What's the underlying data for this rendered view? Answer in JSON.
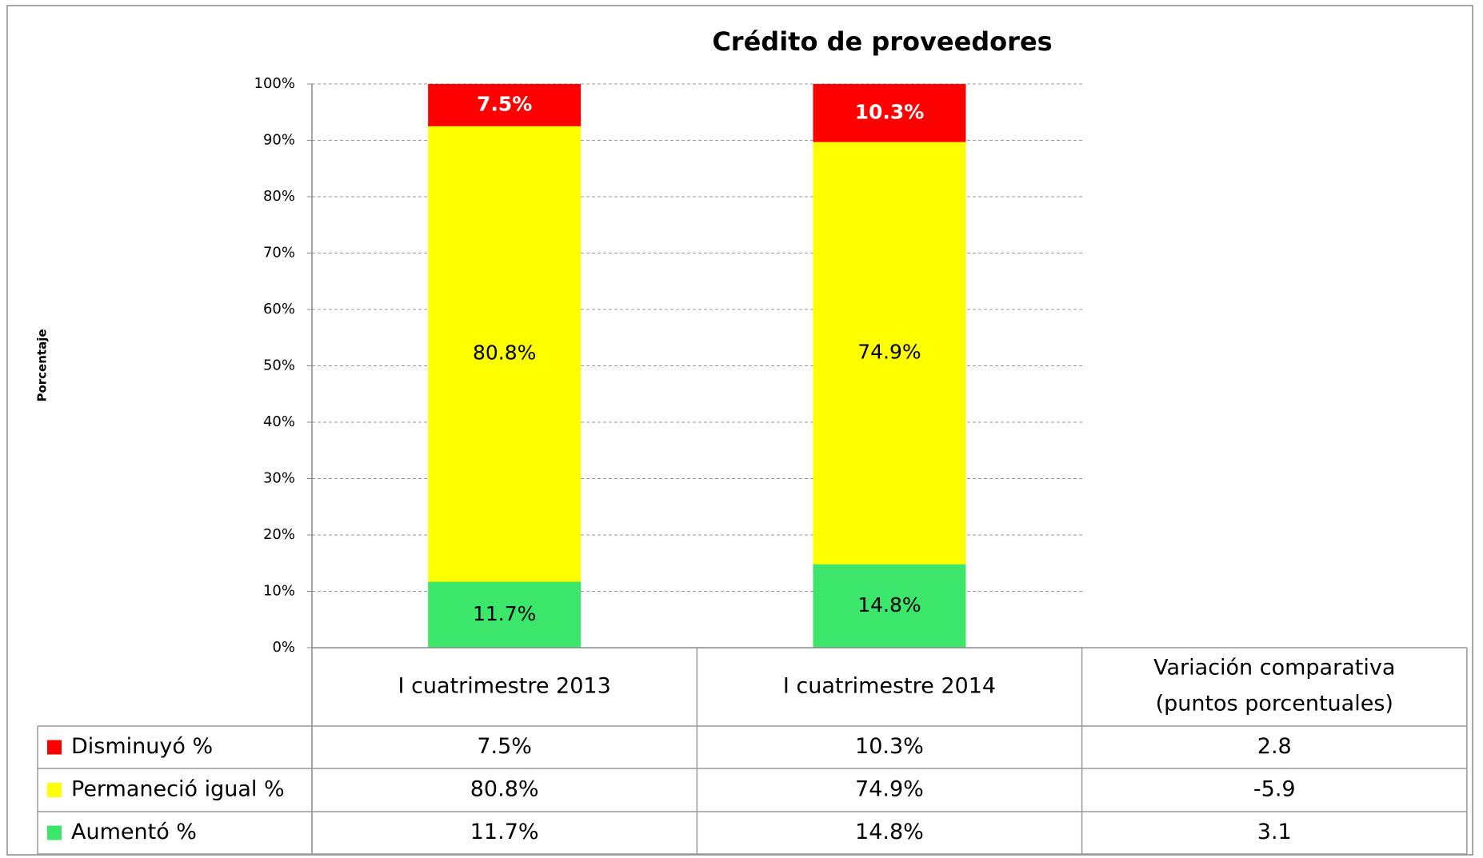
{
  "chart_data": {
    "type": "stacked_bar",
    "title": "Crédito de proveedores",
    "y_label": "Porcentaje",
    "categories": [
      "I cuatrimestre 2013",
      "I cuatrimestre 2014"
    ],
    "series": [
      {
        "name": "Disminuyó %",
        "color": "#ff0000",
        "values": [
          7.5,
          10.3
        ],
        "value_labels": [
          "7.5%",
          "10.3%"
        ],
        "variation": 2.8
      },
      {
        "name": "Permaneció igual %",
        "color": "#ffff00",
        "values": [
          80.8,
          74.9
        ],
        "value_labels": [
          "80.8%",
          "74.9%"
        ],
        "variation": -5.9
      },
      {
        "name": "Aumentó %",
        "color": "#3ce66a",
        "values": [
          11.7,
          14.8
        ],
        "value_labels": [
          "11.7%",
          "14.8%"
        ],
        "variation": 3.1
      }
    ],
    "variation_header": [
      "Variación comparativa",
      "(puntos porcentuales)"
    ],
    "ylim": [
      0,
      100
    ],
    "yticks": [
      {
        "value": 0,
        "label": "0%"
      },
      {
        "value": 10,
        "label": "10%"
      },
      {
        "value": 20,
        "label": "20%"
      },
      {
        "value": 30,
        "label": "30%"
      },
      {
        "value": 40,
        "label": "40%"
      },
      {
        "value": 50,
        "label": "50%"
      },
      {
        "value": 60,
        "label": "60%"
      },
      {
        "value": 70,
        "label": "70%"
      },
      {
        "value": 80,
        "label": "80%"
      },
      {
        "value": 90,
        "label": "90%"
      },
      {
        "value": 100,
        "label": "100%"
      }
    ],
    "grid": true
  }
}
